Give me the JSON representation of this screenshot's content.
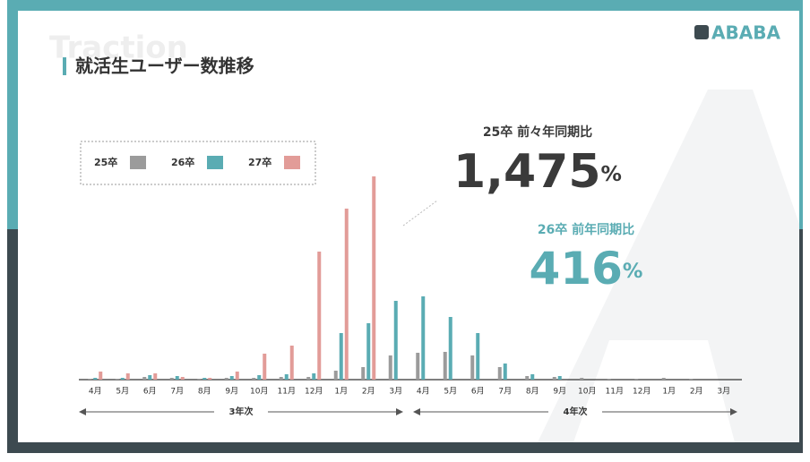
{
  "watermark": "Traction",
  "title": "就活生ユーザー数推移",
  "logo": "ABABA",
  "chart_data": {
    "type": "bar",
    "categories": [
      "4月",
      "5月",
      "6月",
      "7月",
      "8月",
      "9月",
      "10月",
      "11月",
      "12月",
      "1月",
      "2月",
      "3月",
      "4月",
      "5月",
      "6月",
      "7月",
      "8月",
      "9月",
      "10月",
      "11月",
      "12月",
      "1月",
      "2月",
      "3月"
    ],
    "series": [
      {
        "name": "25卒",
        "color": "#9b9b9b",
        "values": [
          1,
          1,
          3,
          2,
          1,
          2,
          2,
          3,
          3,
          10,
          14,
          27,
          30,
          31,
          27,
          14,
          4,
          3,
          2,
          1,
          1,
          2,
          1,
          0
        ]
      },
      {
        "name": "26卒",
        "color": "#5aacb3",
        "values": [
          2,
          2,
          5,
          4,
          2,
          4,
          5,
          6,
          7,
          52,
          63,
          88,
          93,
          70,
          52,
          18,
          6,
          4,
          null,
          null,
          null,
          null,
          null,
          null
        ]
      },
      {
        "name": "27卒",
        "color": "#e29c98",
        "values": [
          9,
          7,
          7,
          3,
          2,
          9,
          29,
          38,
          143,
          191,
          227,
          null,
          null,
          null,
          null,
          null,
          null,
          null,
          null,
          null,
          null,
          null,
          null,
          null
        ]
      }
    ],
    "ylim": [
      0,
      240
    ],
    "periods": [
      "3年次",
      "4年次"
    ],
    "annotations": [
      {
        "label": "25卒 前々年同期比",
        "value": "1,475",
        "unit": "%"
      },
      {
        "label": "26卒 前年同期比",
        "value": "416",
        "unit": "%"
      }
    ]
  }
}
